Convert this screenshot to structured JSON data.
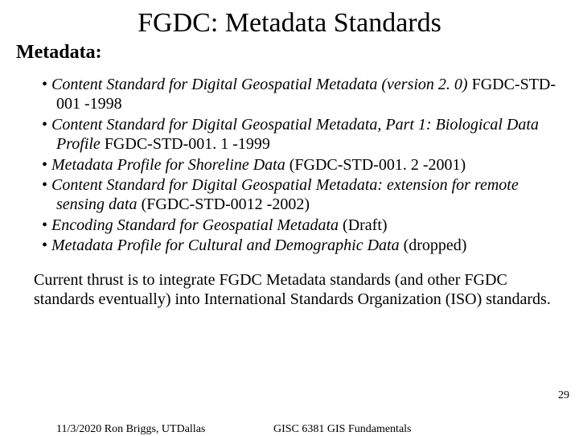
{
  "title": "FGDC: Metadata Standards",
  "subtitle": "Metadata:",
  "bullets": [
    {
      "italic": "Content Standard for Digital Geospatial Metadata (version 2. 0)",
      "rest": " FGDC-STD-001 -1998"
    },
    {
      "italic": "Content Standard for Digital Geospatial Metadata, Part 1: Biological Data Profile",
      "rest": " FGDC-STD-001. 1 -1999"
    },
    {
      "italic": "Metadata Profile for Shoreline Data",
      "rest": " (FGDC-STD-001. 2 -2001)"
    },
    {
      "italic": "Content Standard for Digital Geospatial Metadata: extension for remote sensing data",
      "rest": " (FGDC-STD-0012 -2002)"
    },
    {
      "italic": "Encoding Standard for Geospatial Metadata",
      "rest": " (Draft)"
    },
    {
      "italic": "Metadata Profile for Cultural and Demographic Data",
      "rest": " (dropped)"
    }
  ],
  "paragraph": "Current thrust is to integrate FGDC Metadata standards (and other FGDC standards eventually) into International Standards Organization  (ISO) standards.",
  "page_number": "29",
  "footer_left": "11/3/2020  Ron Briggs, UTDallas",
  "footer_center": "GISC 6381  GIS Fundamentals"
}
